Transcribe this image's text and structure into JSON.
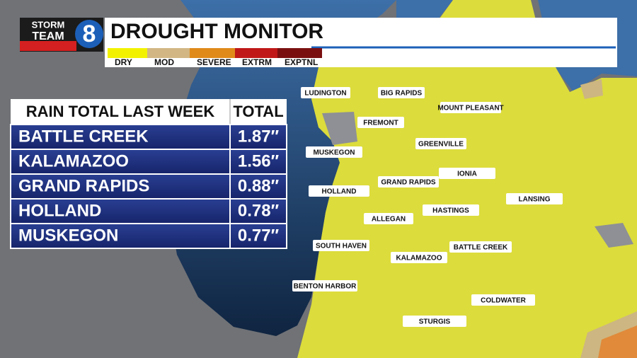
{
  "logo": {
    "top": "STORM",
    "bottom": "TEAM",
    "number": "8"
  },
  "header": {
    "title": "DROUGHT MONITOR",
    "legend": [
      "DRY",
      "MOD",
      "SEVERE",
      "EXTRM",
      "EXPTNL"
    ]
  },
  "table": {
    "headers": [
      "RAIN TOTAL LAST WEEK",
      "TOTAL"
    ],
    "rows": [
      [
        "BATTLE CREEK",
        "1.87″"
      ],
      [
        "KALAMAZOO",
        "1.56″"
      ],
      [
        "GRAND RAPIDS",
        "0.88″"
      ],
      [
        "HOLLAND",
        "0.78″"
      ],
      [
        "MUSKEGON",
        "0.77″"
      ]
    ]
  },
  "map": {
    "cities": [
      "LUDINGTON",
      "BIG RAPIDS",
      "MOUNT PLEASANT",
      "FREMONT",
      "GREENVILLE",
      "MUSKEGON",
      "IONIA",
      "GRAND RAPIDS",
      "HOLLAND",
      "LANSING",
      "HASTINGS",
      "ALLEGAN",
      "SOUTH HAVEN",
      "BATTLE CREEK",
      "KALAMAZOO",
      "BENTON HARBOR",
      "COLDWATER",
      "STURGIS"
    ]
  }
}
